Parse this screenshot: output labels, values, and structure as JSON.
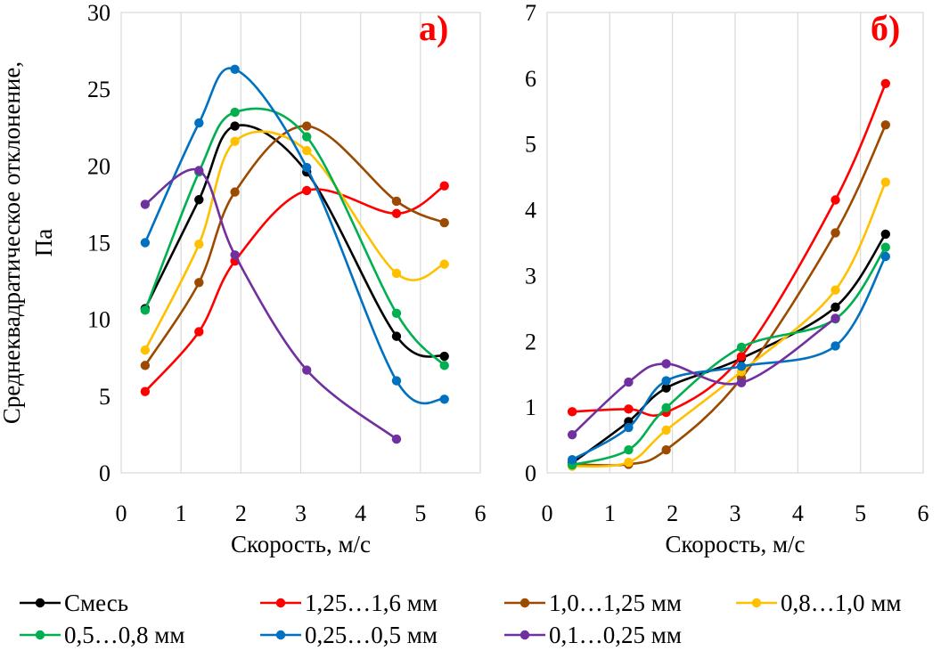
{
  "legend": [
    {
      "name": "Смесь",
      "color": "#000000"
    },
    {
      "name": "1,25…1,6 мм",
      "color": "#ff0000"
    },
    {
      "name": "1,0…1,25 мм",
      "color": "#9c4a00"
    },
    {
      "name": "0,8…1,0 мм",
      "color": "#ffc000"
    },
    {
      "name": "0,5…0,8 мм",
      "color": "#00b050"
    },
    {
      "name": "0,25…0,5 мм",
      "color": "#0070c0"
    },
    {
      "name": "0,1…0,25 мм",
      "color": "#7030a0"
    }
  ],
  "chart_data": [
    {
      "type": "line",
      "panel_label": "а)",
      "title": "",
      "xlabel": "Скорость, м/с",
      "ylabel": "Среднеквадратическое отклонение, Па",
      "ylabel_lines": [
        "Среднеквадратическое отклонение,",
        "Па"
      ],
      "xlim": [
        0,
        6
      ],
      "ylim": [
        0,
        30
      ],
      "xticks": [
        0,
        1,
        2,
        3,
        4,
        5,
        6
      ],
      "yticks": [
        0,
        5,
        10,
        15,
        20,
        25,
        30
      ],
      "xtick_labels": [
        "0",
        "1",
        "2",
        "3",
        "4",
        "5",
        "6"
      ],
      "ytick_labels": [
        "0",
        "5",
        "10",
        "15",
        "20",
        "25",
        "30"
      ],
      "grid": "vertical",
      "series": [
        {
          "name": "Смесь",
          "color": "#000000",
          "x": [
            0.4,
            1.3,
            1.9,
            3.1,
            4.6,
            5.4
          ],
          "y": [
            10.7,
            17.8,
            22.6,
            19.6,
            8.9,
            7.6
          ]
        },
        {
          "name": "1,25…1,6 мм",
          "color": "#ff0000",
          "x": [
            0.4,
            1.3,
            1.9,
            3.1,
            4.6,
            5.4
          ],
          "y": [
            5.3,
            9.2,
            13.8,
            18.4,
            16.9,
            18.7
          ]
        },
        {
          "name": "1,0…1,25 мм",
          "color": "#9c4a00",
          "x": [
            0.4,
            1.3,
            1.9,
            3.1,
            4.6,
            5.4
          ],
          "y": [
            7.0,
            12.4,
            18.3,
            22.6,
            17.7,
            16.3
          ]
        },
        {
          "name": "0,8…1,0 мм",
          "color": "#ffc000",
          "x": [
            0.4,
            1.3,
            1.9,
            3.1,
            4.6,
            5.4
          ],
          "y": [
            8.0,
            14.9,
            21.6,
            21.0,
            13.0,
            13.6
          ]
        },
        {
          "name": "0,5…0,8 мм",
          "color": "#00b050",
          "x": [
            0.4,
            1.3,
            1.9,
            3.1,
            4.6,
            5.4
          ],
          "y": [
            10.6,
            19.6,
            23.5,
            21.9,
            10.4,
            7.0
          ]
        },
        {
          "name": "0,25…0,5 мм",
          "color": "#0070c0",
          "x": [
            0.4,
            1.3,
            1.9,
            3.1,
            4.6,
            5.4
          ],
          "y": [
            15.0,
            22.8,
            26.3,
            19.9,
            6.0,
            4.8
          ]
        },
        {
          "name": "0,1…0,25 мм",
          "color": "#7030a0",
          "x": [
            0.4,
            1.3,
            1.9,
            3.1,
            4.6
          ],
          "y": [
            17.5,
            19.7,
            14.2,
            6.7,
            2.2
          ]
        }
      ]
    },
    {
      "type": "line",
      "panel_label": "б)",
      "title": "",
      "xlabel": "Скорость, м/с",
      "ylabel": "",
      "xlim": [
        0,
        6
      ],
      "ylim": [
        0,
        7
      ],
      "xticks": [
        0,
        1,
        2,
        3,
        4,
        5,
        6
      ],
      "yticks": [
        0,
        1,
        2,
        3,
        4,
        5,
        6,
        7
      ],
      "xtick_labels": [
        "0",
        "1",
        "2",
        "3",
        "4",
        "5",
        "6"
      ],
      "ytick_labels": [
        "0",
        "1",
        "2",
        "3",
        "4",
        "5",
        "6",
        "7"
      ],
      "grid": "vertical",
      "series": [
        {
          "name": "Смесь",
          "color": "#000000",
          "x": [
            0.4,
            1.3,
            1.9,
            3.1,
            4.6,
            5.4
          ],
          "y": [
            0.15,
            0.78,
            1.29,
            1.74,
            2.52,
            3.63
          ]
        },
        {
          "name": "1,25…1,6 мм",
          "color": "#ff0000",
          "x": [
            0.4,
            1.3,
            1.9,
            3.1,
            4.6,
            5.4
          ],
          "y": [
            0.93,
            0.97,
            0.92,
            1.77,
            4.15,
            5.92
          ]
        },
        {
          "name": "1,0…1,25 мм",
          "color": "#9c4a00",
          "x": [
            0.4,
            1.3,
            1.9,
            3.1,
            4.6,
            5.4
          ],
          "y": [
            0.13,
            0.13,
            0.35,
            1.44,
            3.65,
            5.29
          ]
        },
        {
          "name": "0,8…1,0 мм",
          "color": "#ffc000",
          "x": [
            0.4,
            1.3,
            1.9,
            3.1,
            4.6,
            5.4
          ],
          "y": [
            0.1,
            0.16,
            0.65,
            1.54,
            2.78,
            4.42
          ]
        },
        {
          "name": "0,5…0,8 мм",
          "color": "#00b050",
          "x": [
            0.4,
            1.3,
            1.9,
            3.1,
            4.6,
            5.4
          ],
          "y": [
            0.12,
            0.35,
            0.99,
            1.91,
            2.34,
            3.43
          ]
        },
        {
          "name": "0,25…0,5 мм",
          "color": "#0070c0",
          "x": [
            0.4,
            1.3,
            1.9,
            3.1,
            4.6,
            5.4
          ],
          "y": [
            0.2,
            0.69,
            1.4,
            1.62,
            1.93,
            3.29
          ]
        },
        {
          "name": "0,1…0,25 мм",
          "color": "#7030a0",
          "x": [
            0.4,
            1.3,
            1.9,
            3.1,
            4.6
          ],
          "y": [
            0.58,
            1.38,
            1.66,
            1.37,
            2.35
          ]
        }
      ]
    }
  ]
}
